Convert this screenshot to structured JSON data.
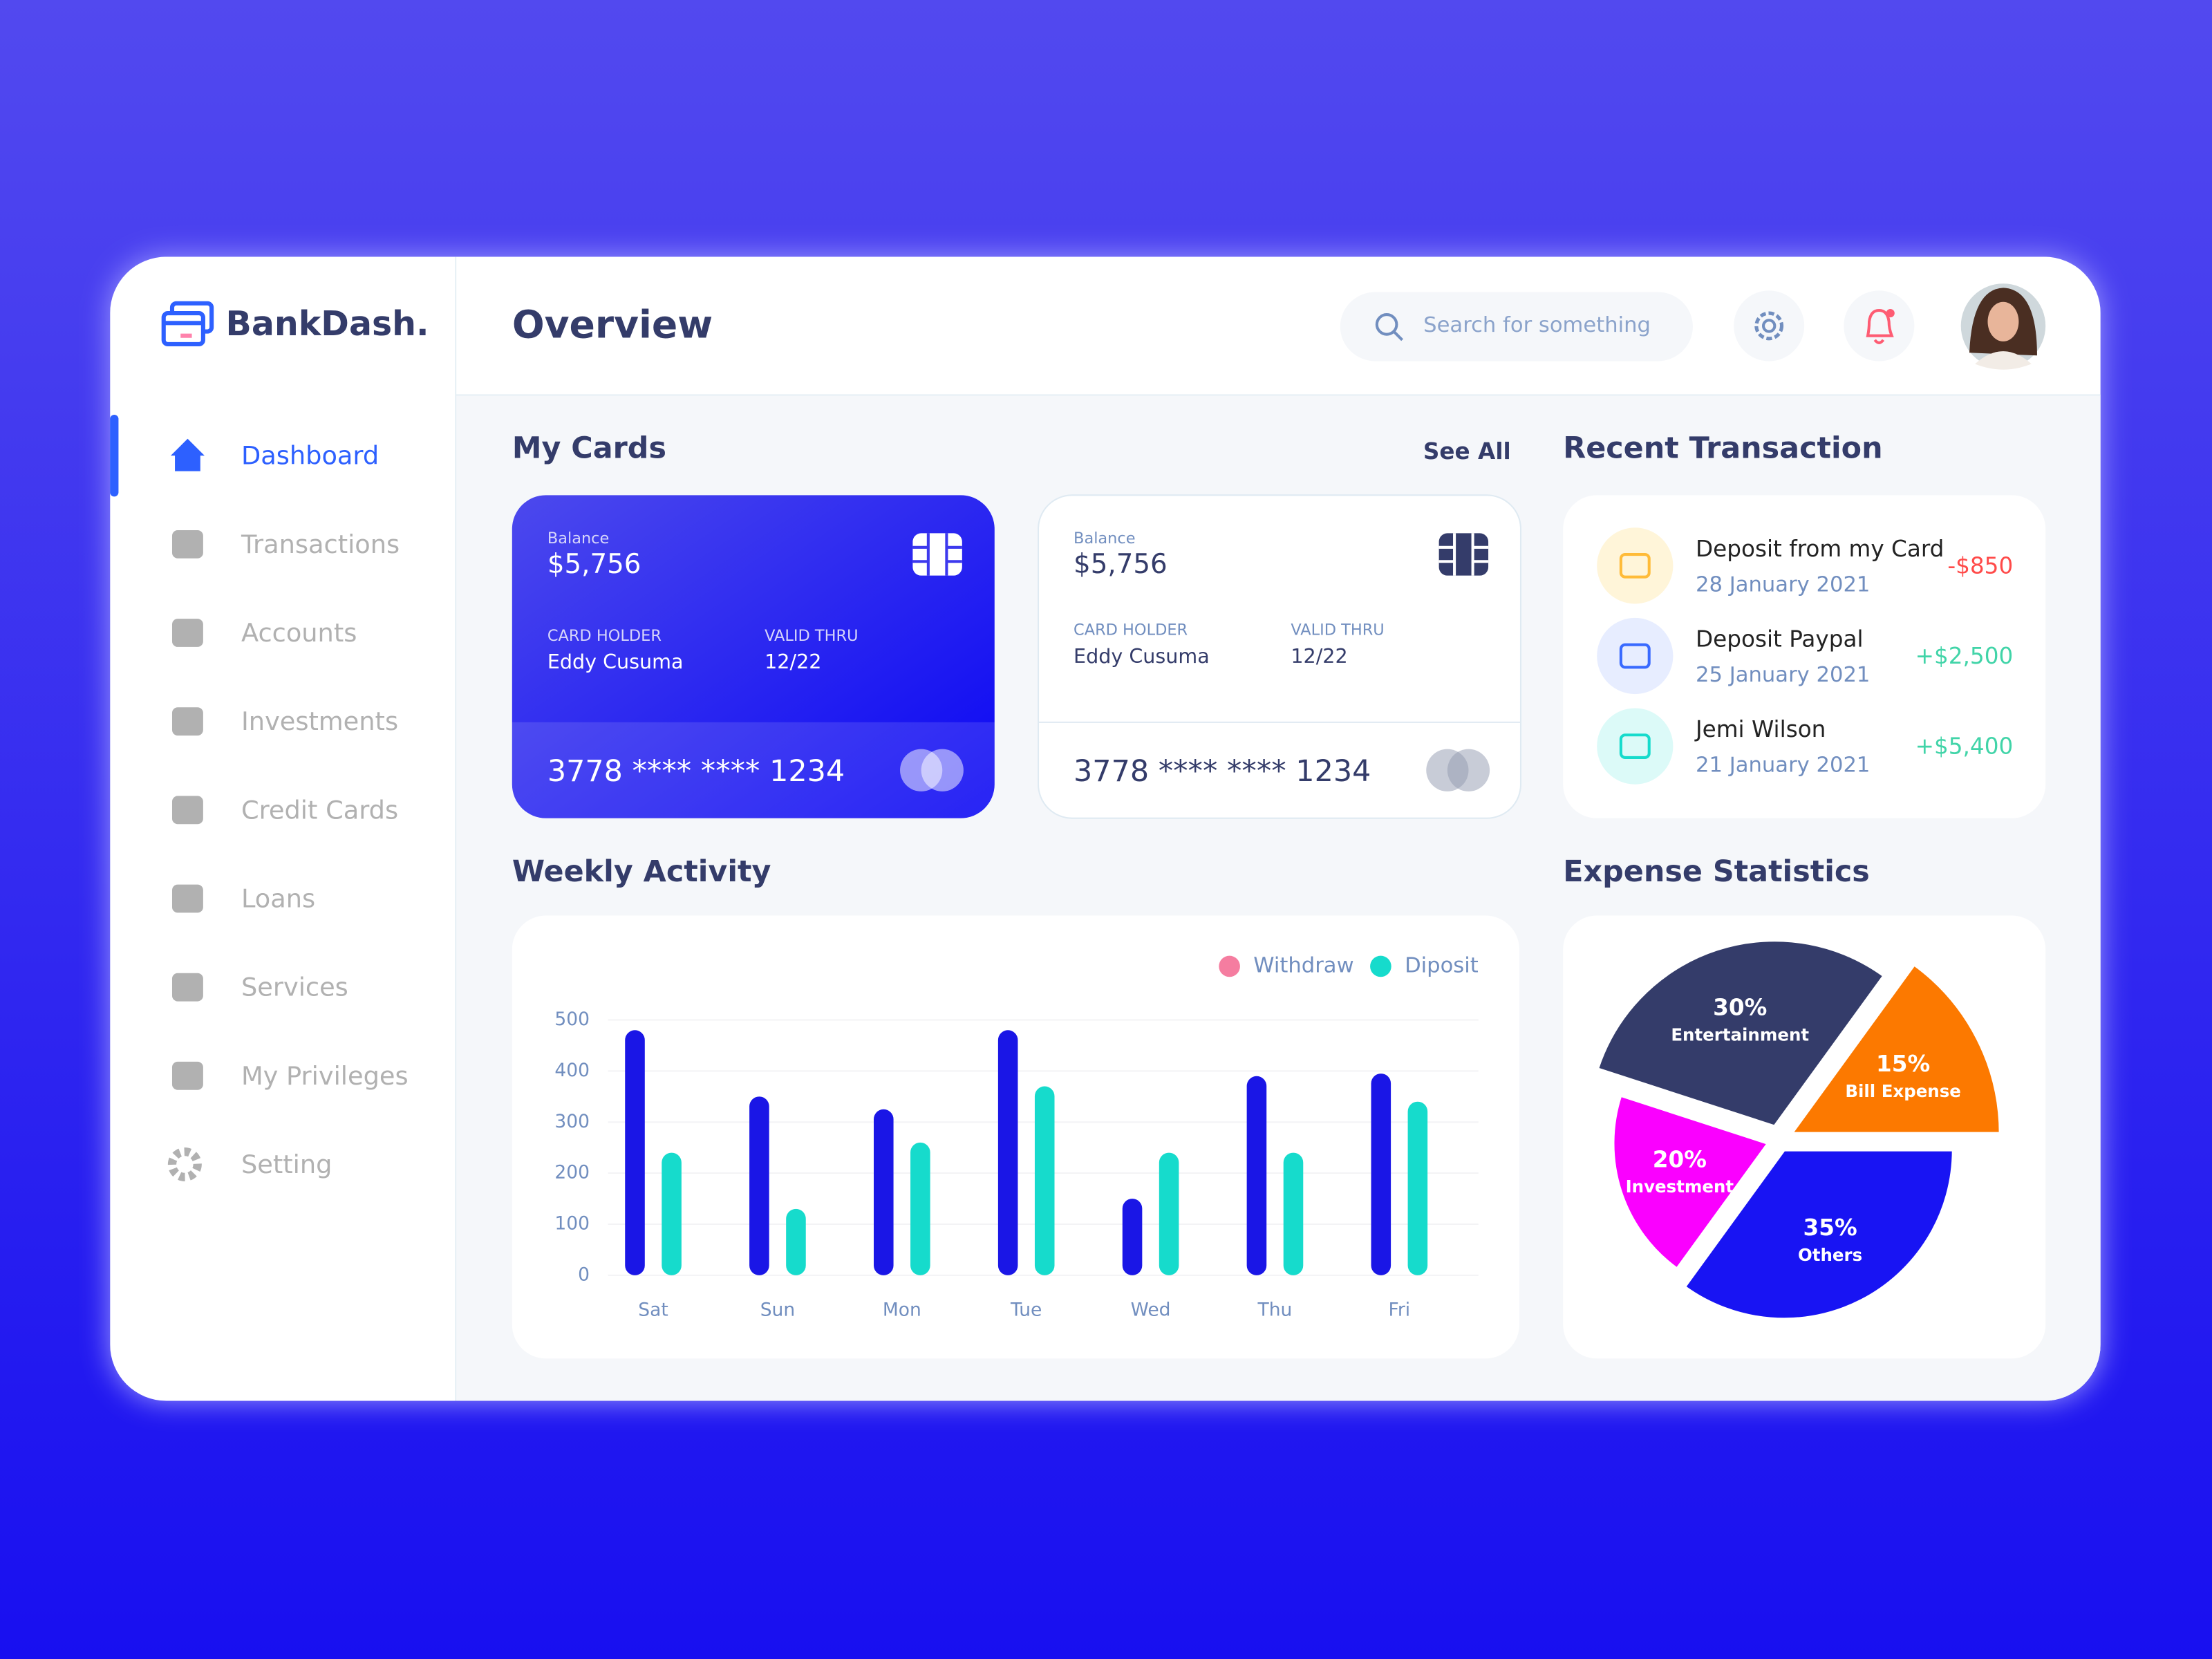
{
  "brand": "BankDash.",
  "nav": [
    "Dashboard",
    "Transactions",
    "Accounts",
    "Investments",
    "Credit Cards",
    "Loans",
    "Services",
    "My Privileges",
    "Setting"
  ],
  "header": {
    "title": "Overview",
    "search_placeholder": "Search for something"
  },
  "my_cards": {
    "title": "My Cards",
    "see_all": "See All",
    "cards": [
      {
        "balance_label": "Balance",
        "balance": "$5,756",
        "holder_label": "CARD HOLDER",
        "holder": "Eddy Cusuma",
        "valid_label": "VALID THRU",
        "valid": "12/22",
        "number": "3778 **** **** 1234"
      },
      {
        "balance_label": "Balance",
        "balance": "$5,756",
        "holder_label": "CARD HOLDER",
        "holder": "Eddy Cusuma",
        "valid_label": "VALID THRU",
        "valid": "12/22",
        "number": "3778 **** **** 1234"
      }
    ]
  },
  "recent_transaction": {
    "title": "Recent Transaction",
    "items": [
      {
        "name": "Deposit from my Card",
        "date": "28 January 2021",
        "amount": "-$850"
      },
      {
        "name": "Deposit Paypal",
        "date": "25 January 2021",
        "amount": "+$2,500"
      },
      {
        "name": "Jemi Wilson",
        "date": "21 January 2021",
        "amount": "+$5,400"
      }
    ]
  },
  "chart_data": [
    {
      "type": "bar",
      "title": "Weekly Activity",
      "categories": [
        "Sat",
        "Sun",
        "Mon",
        "Tue",
        "Wed",
        "Thu",
        "Fri"
      ],
      "series": [
        {
          "name": "Withdraw",
          "color": "#1a16e6",
          "legend_color": "#f57da0",
          "values": [
            480,
            350,
            325,
            480,
            150,
            390,
            395
          ]
        },
        {
          "name": "Diposit",
          "color": "#16dbcc",
          "legend_color": "#16dbcc",
          "values": [
            240,
            130,
            260,
            370,
            240,
            240,
            340
          ]
        }
      ],
      "ylim": [
        0,
        500
      ],
      "yticks": [
        0,
        100,
        200,
        300,
        400,
        500
      ],
      "grid": true,
      "legend": "top-right"
    },
    {
      "type": "pie",
      "title": "Expense Statistics",
      "categories": [
        "Entertainment",
        "Bill Expense",
        "Others",
        "Investment"
      ],
      "values": [
        30,
        15,
        35,
        20
      ],
      "value_labels": [
        "30%",
        "15%",
        "35%",
        "20%"
      ],
      "colors": [
        "#343c6a",
        "#fc7900",
        "#1814f3",
        "#fa00ff"
      ]
    }
  ]
}
